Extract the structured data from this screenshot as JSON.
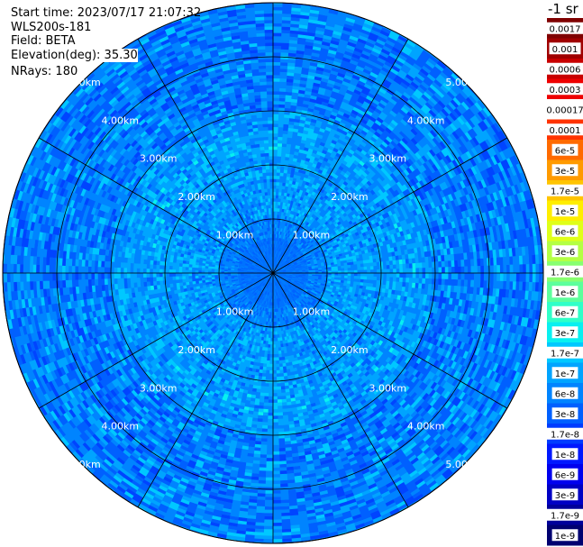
{
  "header": {
    "start_time": "Start time: 2023/07/17 21:07:32",
    "instrument": "WLS200s-181",
    "field": "Field: BETA",
    "elevation": "Elevation(deg): 35.30",
    "nrays": "NRays: 180",
    "unit_title": "-1 sr"
  },
  "chart_data": {
    "type": "heatmap",
    "projection": "polar PPI",
    "range_rings_km": [
      1,
      2,
      3,
      4,
      5
    ],
    "ring_labels": [
      "1.00km",
      "2.00km",
      "3.00km",
      "4.00km",
      "5.00km"
    ],
    "max_range_km": 5.0,
    "radial_lines_deg": [
      0,
      30,
      60,
      90,
      120,
      150,
      180,
      210,
      240,
      270,
      300,
      330
    ],
    "n_rays": 180,
    "field": "BETA",
    "colorbar": {
      "labels": [
        "0.0017",
        "0.001",
        "0.0006",
        "0.0003",
        "0.00017",
        "0.0001",
        "6e-5",
        "3e-5",
        "1.7e-5",
        "1e-5",
        "6e-6",
        "3e-6",
        "1.7e-6",
        "1e-6",
        "6e-7",
        "3e-7",
        "1.7e-7",
        "1e-7",
        "6e-8",
        "3e-8",
        "1.7e-8",
        "1e-8",
        "6e-9",
        "3e-9",
        "1.7e-9",
        "1e-9"
      ],
      "colors": [
        "#7f0000",
        "#a00000",
        "#c80000",
        "#ee0000",
        "#ffffff",
        "#ff3300",
        "#ff6a00",
        "#ff9a00",
        "#ffc400",
        "#ffee00",
        "#e0ff18",
        "#b4ff44",
        "#88ff70",
        "#5cff9c",
        "#30ffc8",
        "#08f0f0",
        "#00c8ff",
        "#00a4ff",
        "#0084ff",
        "#0060ff",
        "#003cff",
        "#0018ff",
        "#0000ee",
        "#0000c4",
        "#00009a",
        "#000070"
      ],
      "scale": "log"
    }
  }
}
